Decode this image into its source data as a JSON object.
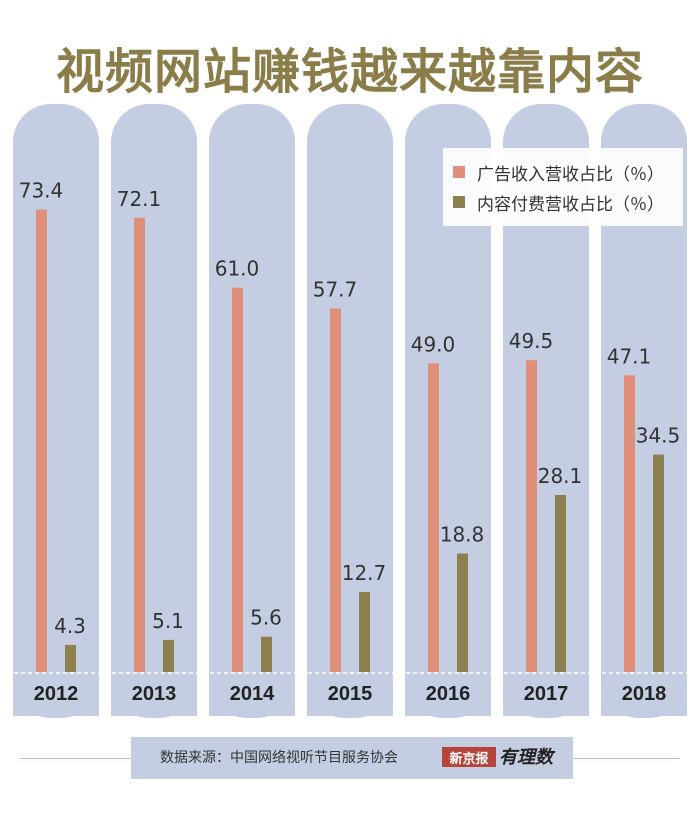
{
  "title": "视频网站赚钱越来越靠内容",
  "source": "数据来源：中国网络视听节目服务协会",
  "logo": {
    "box_text": "新京报",
    "brand_text": "有理数"
  },
  "colors": {
    "panel": "#c5cde3",
    "ad": "#e0907a",
    "content": "#8b804e",
    "title": "#8b7d4a"
  },
  "chart_data": {
    "type": "bar",
    "categories": [
      "2012",
      "2013",
      "2014",
      "2015",
      "2016",
      "2017",
      "2018"
    ],
    "series": [
      {
        "name": "广告收入营收占比（％）",
        "values": [
          73.4,
          72.1,
          61.0,
          57.7,
          49.0,
          49.5,
          47.1
        ]
      },
      {
        "name": "内容付费营收占比（％）",
        "values": [
          4.3,
          5.1,
          5.6,
          12.7,
          18.8,
          28.1,
          34.5
        ]
      }
    ],
    "value_labels": [
      [
        "73.4",
        "72.1",
        "61.0",
        "57.7",
        "49.0",
        "49.5",
        "47.1"
      ],
      [
        "4.3",
        "5.1",
        "5.6",
        "12.7",
        "18.8",
        "28.1",
        "34.5"
      ]
    ],
    "ylim": [
      0,
      100
    ],
    "legend_position": "top-right",
    "grid": false
  }
}
